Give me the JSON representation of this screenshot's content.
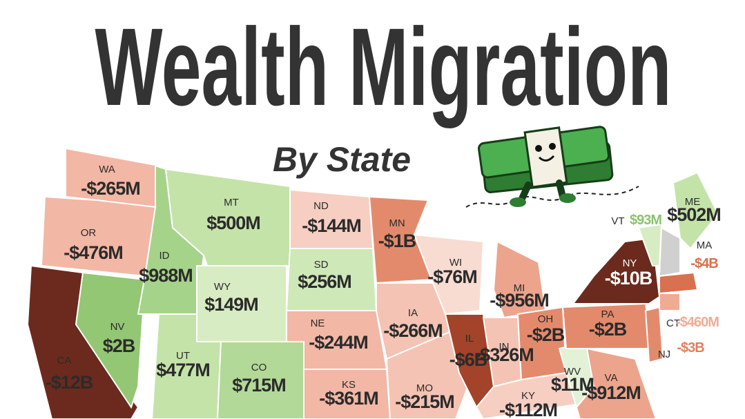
{
  "header": {
    "title": "Wealth Migration",
    "subtitle": "By State"
  },
  "states": [
    {
      "abbr": "WA",
      "value": "-$265M",
      "color": "#f2b7a5"
    },
    {
      "abbr": "OR",
      "value": "-$476M",
      "color": "#f2b7a5"
    },
    {
      "abbr": "CA",
      "value": "-$12B",
      "color": "#6b2a1d"
    },
    {
      "abbr": "NV",
      "value": "$2B",
      "color": "#93c774"
    },
    {
      "abbr": "ID",
      "value": "$988M",
      "color": "#a6d38a"
    },
    {
      "abbr": "MT",
      "value": "$500M",
      "color": "#c4e3a9"
    },
    {
      "abbr": "WY",
      "value": "$149M",
      "color": "#d8ecc3"
    },
    {
      "abbr": "UT",
      "value": "$477M",
      "color": "#c4e3a9"
    },
    {
      "abbr": "CO",
      "value": "$715M",
      "color": "#b2d997"
    },
    {
      "abbr": "ND",
      "value": "-$144M",
      "color": "#f6cfc2"
    },
    {
      "abbr": "SD",
      "value": "$256M",
      "color": "#cfe8b8"
    },
    {
      "abbr": "NE",
      "value": "-$244M",
      "color": "#f2b7a5"
    },
    {
      "abbr": "KS",
      "value": "-$361M",
      "color": "#f2b7a5"
    },
    {
      "abbr": "MN",
      "value": "-$1B",
      "color": "#e48a6c"
    },
    {
      "abbr": "IA",
      "value": "-$266M",
      "color": "#f4c3b3"
    },
    {
      "abbr": "MO",
      "value": "-$215M",
      "color": "#f4c3b3"
    },
    {
      "abbr": "WI",
      "value": "-$76M",
      "color": "#f8dcd2"
    },
    {
      "abbr": "IL",
      "value": "-$6B",
      "color": "#a2432a"
    },
    {
      "abbr": "MI",
      "value": "-$956M",
      "color": "#eca48c"
    },
    {
      "abbr": "IN",
      "value": "-$326M",
      "color": "#f4c3b3"
    },
    {
      "abbr": "OH",
      "value": "-$2B",
      "color": "#e48a6c"
    },
    {
      "abbr": "KY",
      "value": "-$112M",
      "color": "#f6cfc2"
    },
    {
      "abbr": "WV",
      "value": "$11M",
      "color": "#e3f1d6"
    },
    {
      "abbr": "VA",
      "value": "-$912M",
      "color": "#eca48c"
    },
    {
      "abbr": "PA",
      "value": "-$2B",
      "color": "#e48a6c"
    },
    {
      "abbr": "NY",
      "value": "-$10B",
      "color": "#6b2a1d",
      "label_color": "#ffffff"
    },
    {
      "abbr": "VT",
      "value": "$93M",
      "color": "#d8ecc3",
      "label_color": "#8cc36e"
    },
    {
      "abbr": "ME",
      "value": "$502M",
      "color": "#c4e3a9"
    },
    {
      "abbr": "MA",
      "value": "-$4B",
      "color": "#d9704f",
      "label_color": "#d9704f"
    },
    {
      "abbr": "CT",
      "value": "-$460M",
      "color": "#f0ab95",
      "label_color": "#f0ab95"
    },
    {
      "abbr": "NJ",
      "value": "-$3B",
      "color": "#e48a6c",
      "label_color": "#e0805f"
    }
  ]
}
